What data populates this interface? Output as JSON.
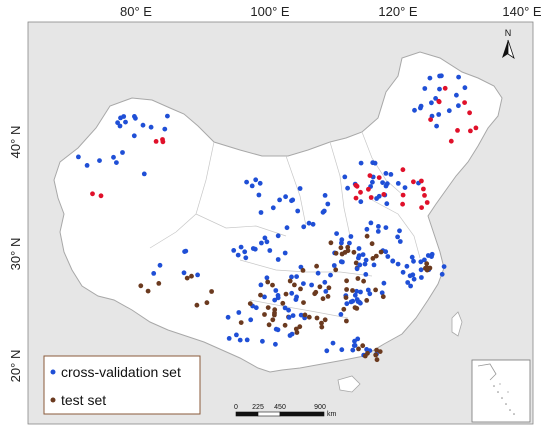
{
  "map": {
    "lon_labels": [
      "80° E",
      "100° E",
      "120° E",
      "140° E"
    ],
    "lat_labels": [
      "40° N",
      "30° N",
      "20° N"
    ],
    "north_arrow_label": "N",
    "legend": {
      "cv_label": "cross-validation set",
      "test_label": "test set"
    },
    "scale_bar": {
      "ticks": [
        "0",
        "225",
        "450",
        "900"
      ],
      "unit": "km"
    },
    "colors": {
      "cross_validation": "#1f4fd6",
      "test": "#6b3a1f",
      "highlight": "#e0102a",
      "land": "#ffffff",
      "sea": "#e6e6e6",
      "boundary": "#b8b8b8"
    }
  }
}
